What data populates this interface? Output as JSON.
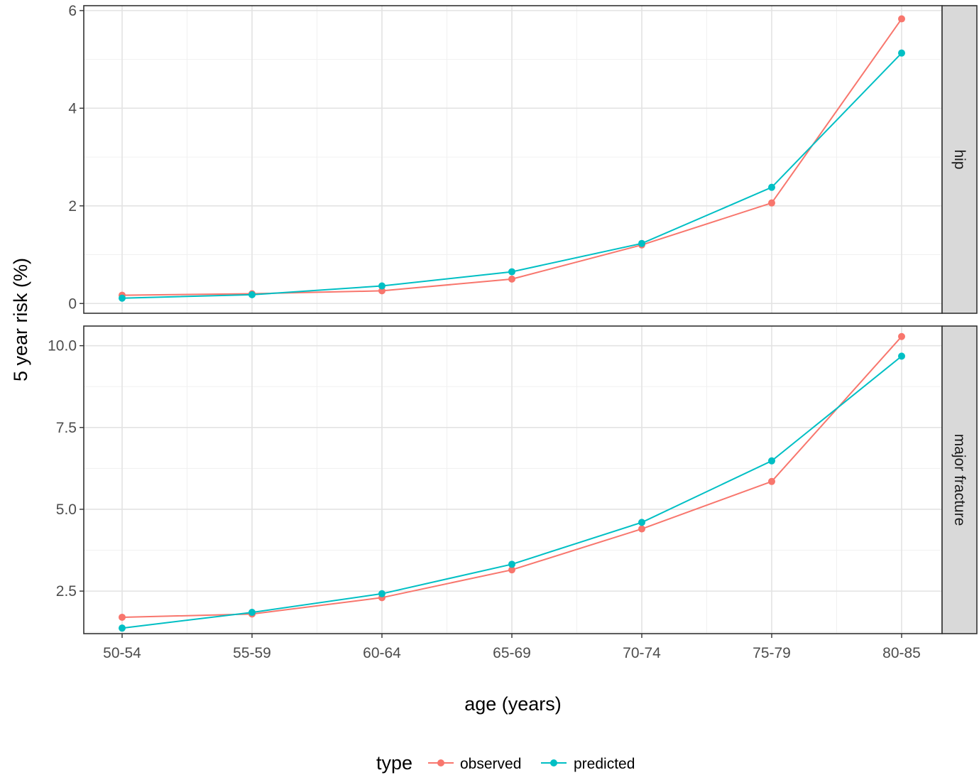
{
  "chart_data": {
    "type": "line",
    "xlabel": "age (years)",
    "ylabel": "5 year risk (%)",
    "categories": [
      "50-54",
      "55-59",
      "60-64",
      "65-69",
      "70-74",
      "75-79",
      "80-85"
    ],
    "colors": {
      "observed": "#F8766D",
      "predicted": "#00BFC4"
    },
    "legend": {
      "title": "type",
      "position": "bottom",
      "entries": [
        "observed",
        "predicted"
      ]
    },
    "grid": true,
    "panels": [
      {
        "strip": "hip",
        "ylim": [
          -0.2,
          6.1
        ],
        "yticks": [
          0,
          2,
          4,
          6
        ],
        "ytick_labels": [
          "0",
          "2",
          "4",
          "6"
        ],
        "series": [
          {
            "name": "observed",
            "values": [
              0.17,
              0.2,
              0.26,
              0.5,
              1.2,
              2.06,
              5.83
            ]
          },
          {
            "name": "predicted",
            "values": [
              0.11,
              0.18,
              0.36,
              0.65,
              1.23,
              2.38,
              5.13
            ]
          }
        ]
      },
      {
        "strip": "major fracture",
        "ylim": [
          1.2,
          10.6
        ],
        "yticks": [
          2.5,
          5.0,
          7.5,
          10.0
        ],
        "ytick_labels": [
          "2.5",
          "5.0",
          "7.5",
          "10.0"
        ],
        "series": [
          {
            "name": "observed",
            "values": [
              1.7,
              1.8,
              2.3,
              3.15,
              4.4,
              5.85,
              10.28
            ]
          },
          {
            "name": "predicted",
            "values": [
              1.37,
              1.85,
              2.42,
              3.32,
              4.6,
              6.48,
              9.68
            ]
          }
        ]
      }
    ]
  }
}
